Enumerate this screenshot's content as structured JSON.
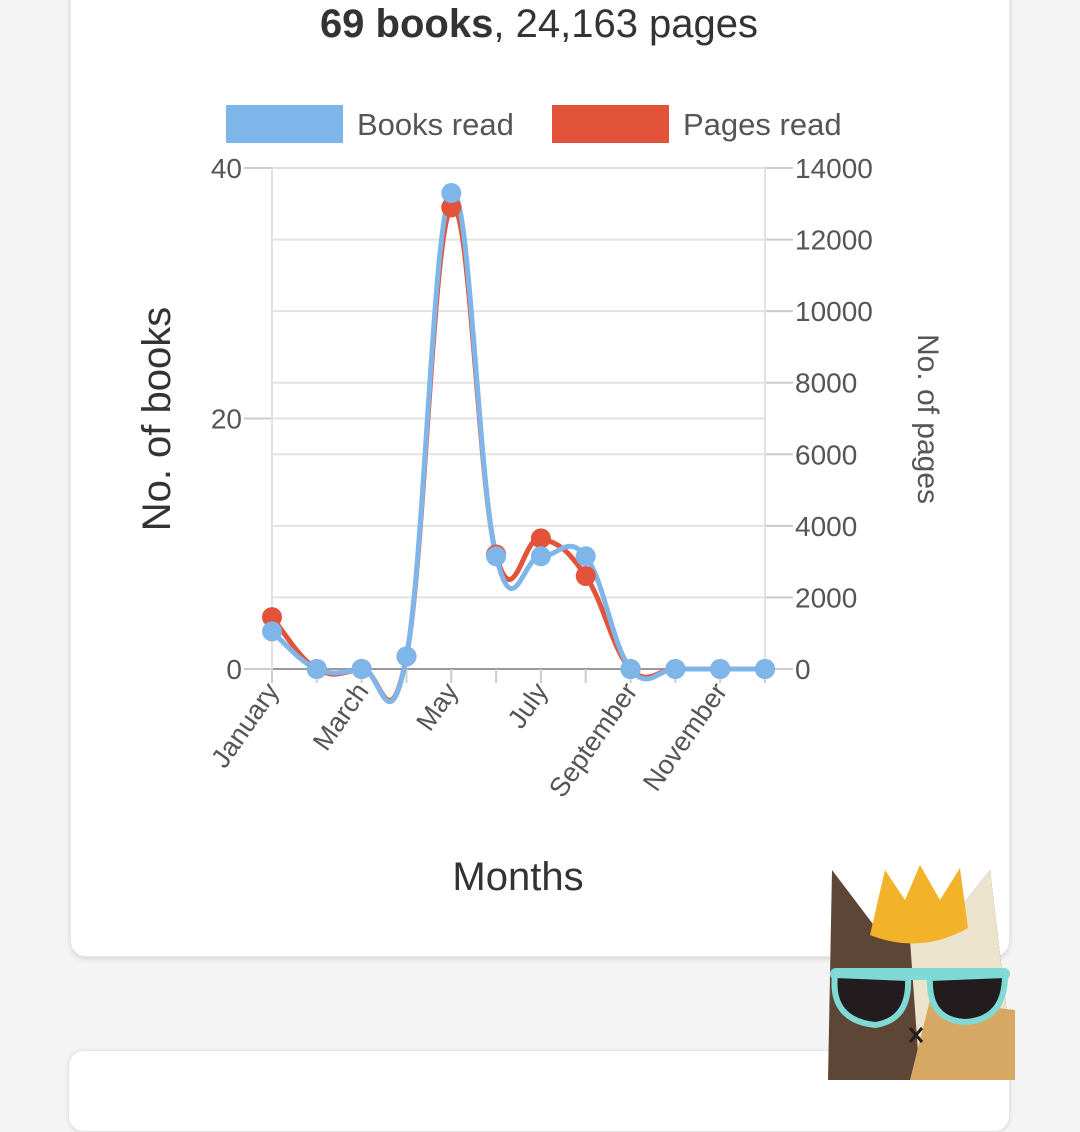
{
  "summary": {
    "books_bold": "69 books",
    "separator": ",",
    "pages_text": "24,163 pages"
  },
  "colors": {
    "books": "#7eb6ea",
    "pages": "#e2533a",
    "grid": "#e2e2e2",
    "axis_text": "#555555"
  },
  "chart_data": {
    "type": "line",
    "categories": [
      "January",
      "February",
      "March",
      "April",
      "May",
      "June",
      "July",
      "August",
      "September",
      "October",
      "November",
      "December"
    ],
    "x_tick_labels_shown": [
      "January",
      "March",
      "May",
      "July",
      "September",
      "November"
    ],
    "series": [
      {
        "name": "Books read",
        "axis": "left",
        "values": [
          3,
          0,
          0,
          1,
          38,
          9,
          9,
          9,
          0,
          0,
          0,
          0
        ]
      },
      {
        "name": "Pages read",
        "axis": "right",
        "values": [
          1450,
          0,
          0,
          350,
          12900,
          3200,
          3650,
          2600,
          0,
          0,
          0,
          0
        ]
      }
    ],
    "xlabel": "Months",
    "ylabel_left": "No. of books",
    "ylabel_right": "No. of pages",
    "ylim_left": [
      0,
      40
    ],
    "ylim_right": [
      0,
      14000
    ],
    "yticks_left": [
      0,
      20,
      40
    ],
    "yticks_right": [
      0,
      2000,
      4000,
      6000,
      8000,
      10000,
      12000,
      14000
    ],
    "legend": [
      "Books read",
      "Pages read"
    ],
    "legend_position": "top",
    "grid": true
  }
}
